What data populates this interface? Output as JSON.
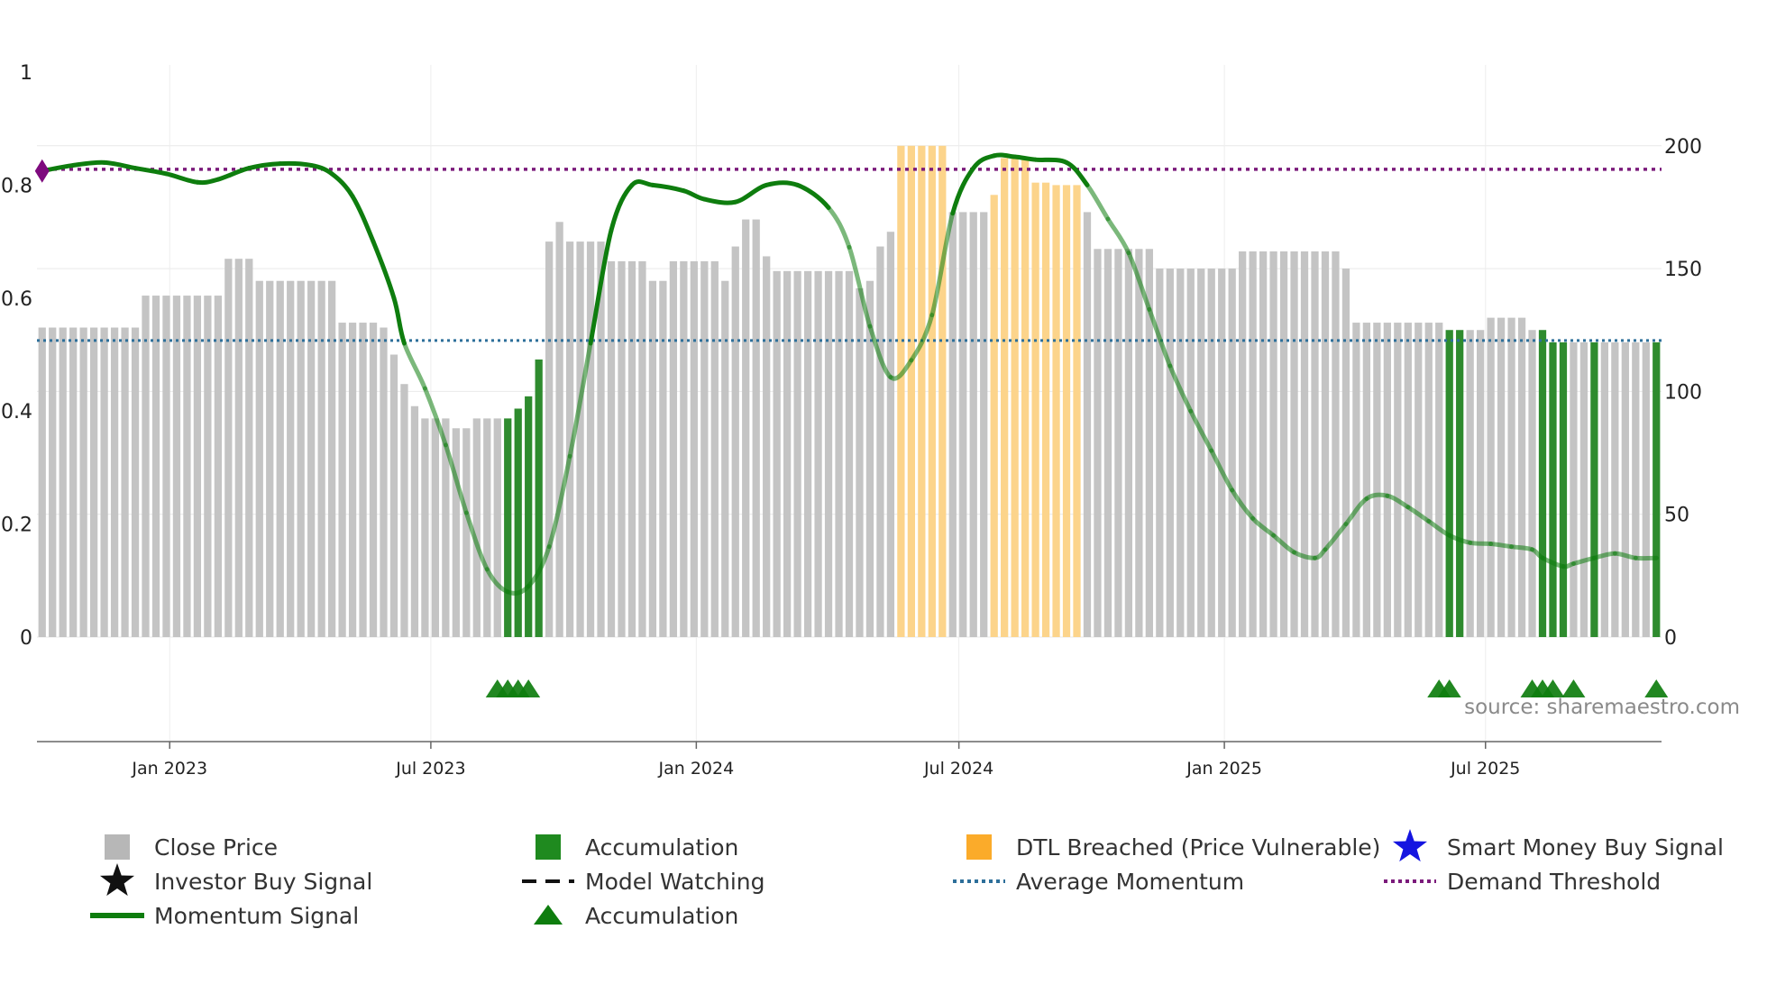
{
  "chart_data": {
    "type": "bar",
    "source": "source: sharemaestro.com",
    "left_axis": {
      "ticks": [
        0,
        0.2,
        0.4,
        0.6,
        0.8,
        1
      ],
      "tick_labels": [
        "0",
        "0.2",
        "0.4",
        "0.6",
        "0.8",
        "1"
      ],
      "ylim": [
        0,
        1
      ]
    },
    "right_axis": {
      "ticks": [
        0,
        50,
        100,
        150,
        200
      ],
      "tick_labels": [
        "0",
        "50",
        "100",
        "150",
        "200"
      ],
      "ylim": [
        0,
        230
      ]
    },
    "x_axis": {
      "start": "2022-10-01",
      "end": "2025-10-31",
      "ticks": [
        {
          "date": "2023-01-01",
          "label": "Jan 2023"
        },
        {
          "date": "2023-07-01",
          "label": "Jul 2023"
        },
        {
          "date": "2024-01-01",
          "label": "Jan 2024"
        },
        {
          "date": "2024-07-01",
          "label": "Jul 2024"
        },
        {
          "date": "2025-01-01",
          "label": "Jan 2025"
        },
        {
          "date": "2025-07-01",
          "label": "Jul 2025"
        }
      ]
    },
    "average_momentum": 0.525,
    "demand_threshold": 0.828,
    "colors": {
      "close": "#c4c4c4",
      "accumulation": "#2e8b2e",
      "dtl": "#fcd48b",
      "momentum": "#0e7d0e",
      "average": "#2d6f9a",
      "threshold": "#7b1a7b",
      "smart_money": "#1515e0",
      "marker": "#7e0a7e"
    },
    "bar_series": {
      "name": "Close Price",
      "bar_count": 157,
      "segments": [
        {
          "start_index": 0,
          "values": [
            126,
            126,
            126,
            126,
            126,
            126,
            126,
            126,
            126,
            126
          ]
        },
        {
          "start_index": 10,
          "values": [
            139,
            139,
            139,
            139,
            139,
            139,
            139,
            139
          ]
        },
        {
          "start_index": 18,
          "values": [
            154,
            154,
            154
          ]
        },
        {
          "start_index": 21,
          "values": [
            145,
            145,
            145,
            145,
            145,
            145,
            145,
            145
          ]
        },
        {
          "start_index": 29,
          "values": [
            128,
            128,
            128,
            128,
            126
          ]
        },
        {
          "start_index": 34,
          "values": [
            115,
            103,
            94,
            89,
            89,
            89,
            85,
            85,
            89,
            89,
            89
          ]
        },
        {
          "start_index": 45,
          "values": [
            89,
            93,
            98,
            113
          ]
        },
        {
          "start_index": 49,
          "values": [
            161,
            169,
            161,
            161,
            161,
            161
          ]
        },
        {
          "start_index": 55,
          "values": [
            153,
            153,
            153,
            153,
            145,
            145,
            153,
            153,
            153,
            153,
            153,
            145,
            159,
            170,
            170,
            155,
            149,
            149,
            149,
            149,
            149,
            149,
            149,
            149,
            142,
            145,
            159,
            165
          ]
        },
        {
          "start_index": 83,
          "values": [
            200,
            200,
            200,
            200,
            200
          ]
        },
        {
          "start_index": 88,
          "values": [
            173,
            173,
            173,
            173
          ]
        },
        {
          "start_index": 92,
          "values": [
            180,
            195,
            195,
            195,
            185,
            185,
            184,
            184,
            184
          ]
        },
        {
          "start_index": 101,
          "values": [
            173,
            158,
            158,
            158,
            158,
            158,
            158,
            150,
            150,
            150,
            150,
            150,
            150,
            150,
            150,
            157,
            157,
            157,
            157,
            157,
            157,
            157,
            157,
            157,
            157,
            150,
            128,
            128,
            128,
            128,
            128,
            128,
            128,
            128,
            128
          ]
        },
        {
          "start_index": 136,
          "values": [
            125,
            125
          ]
        },
        {
          "start_index": 138,
          "values": [
            125,
            125,
            130,
            130,
            130,
            130,
            125
          ]
        },
        {
          "start_index": 145,
          "values": [
            125,
            120,
            120
          ]
        },
        {
          "start_index": 148,
          "values": [
            120,
            120
          ]
        },
        {
          "start_index": 150,
          "values": [
            120
          ]
        },
        {
          "start_index": 151,
          "values": [
            120,
            120,
            120,
            120,
            120
          ]
        },
        {
          "start_index": 156,
          "values": [
            120
          ]
        }
      ],
      "accumulation_indices": [
        45,
        46,
        47,
        48,
        136,
        137,
        145,
        146,
        147,
        150,
        156
      ],
      "dtl_indices": [
        83,
        84,
        85,
        86,
        87,
        92,
        93,
        94,
        95,
        96,
        97,
        98,
        99,
        100
      ]
    },
    "momentum_series": {
      "name": "Momentum Signal",
      "points": [
        [
          0,
          0.825
        ],
        [
          3,
          0.835
        ],
        [
          6,
          0.84
        ],
        [
          9,
          0.83
        ],
        [
          12,
          0.82
        ],
        [
          15,
          0.805
        ],
        [
          17,
          0.81
        ],
        [
          20,
          0.83
        ],
        [
          23,
          0.838
        ],
        [
          26,
          0.835
        ],
        [
          28,
          0.82
        ],
        [
          30,
          0.78
        ],
        [
          32,
          0.7
        ],
        [
          34,
          0.6
        ],
        [
          35,
          0.52
        ],
        [
          37,
          0.44
        ],
        [
          39,
          0.34
        ],
        [
          41,
          0.22
        ],
        [
          43,
          0.12
        ],
        [
          45,
          0.08
        ],
        [
          47,
          0.09
        ],
        [
          49,
          0.16
        ],
        [
          51,
          0.32
        ],
        [
          53,
          0.52
        ],
        [
          55,
          0.72
        ],
        [
          57,
          0.8
        ],
        [
          59,
          0.8
        ],
        [
          62,
          0.79
        ],
        [
          64,
          0.775
        ],
        [
          67,
          0.77
        ],
        [
          70,
          0.8
        ],
        [
          73,
          0.8
        ],
        [
          76,
          0.76
        ],
        [
          78,
          0.69
        ],
        [
          80,
          0.55
        ],
        [
          82,
          0.46
        ],
        [
          84,
          0.49
        ],
        [
          86,
          0.57
        ],
        [
          88,
          0.75
        ],
        [
          90,
          0.83
        ],
        [
          92,
          0.852
        ],
        [
          94,
          0.85
        ],
        [
          96,
          0.845
        ],
        [
          99,
          0.84
        ],
        [
          101,
          0.8
        ],
        [
          103,
          0.74
        ],
        [
          105,
          0.68
        ],
        [
          107,
          0.58
        ],
        [
          109,
          0.48
        ],
        [
          111,
          0.4
        ],
        [
          113,
          0.33
        ],
        [
          115,
          0.26
        ],
        [
          117,
          0.21
        ],
        [
          119,
          0.18
        ],
        [
          121,
          0.15
        ],
        [
          123,
          0.14
        ],
        [
          124,
          0.155
        ],
        [
          126,
          0.2
        ],
        [
          128,
          0.245
        ],
        [
          130,
          0.25
        ],
        [
          132,
          0.23
        ],
        [
          134,
          0.205
        ],
        [
          136,
          0.18
        ],
        [
          138,
          0.167
        ],
        [
          140,
          0.165
        ],
        [
          142,
          0.16
        ],
        [
          144,
          0.155
        ],
        [
          145,
          0.14
        ],
        [
          147,
          0.125
        ],
        [
          148,
          0.13
        ],
        [
          150,
          0.14
        ],
        [
          152,
          0.148
        ],
        [
          154,
          0.14
        ],
        [
          156,
          0.14
        ]
      ],
      "faded_ranges": [
        [
          35,
          52
        ],
        [
          76,
          87
        ],
        [
          100,
          157
        ]
      ]
    },
    "accumulation_triangles": [
      44.5,
      45.5,
      46.5,
      47.5,
      135.5,
      136.5,
      144.5,
      145.5,
      146.5,
      148.5,
      156.5
    ],
    "legend": [
      {
        "label": "Close Price",
        "icon": "gray-square"
      },
      {
        "label": "Accumulation",
        "icon": "green-square"
      },
      {
        "label": "DTL Breached (Price Vulnerable)",
        "icon": "orange-square"
      },
      {
        "label": "Smart Money Buy Signal",
        "icon": "blue-star"
      },
      {
        "label": "Investor Buy Signal",
        "icon": "black-star"
      },
      {
        "label": "Model Watching",
        "icon": "black-dashes"
      },
      {
        "label": "Average Momentum",
        "icon": "blue-dotted-line"
      },
      {
        "label": "Demand Threshold",
        "icon": "purple-dotted-line"
      },
      {
        "label": "Momentum Signal",
        "icon": "green-line"
      },
      {
        "label": "Accumulation",
        "icon": "green-triangle"
      }
    ]
  }
}
